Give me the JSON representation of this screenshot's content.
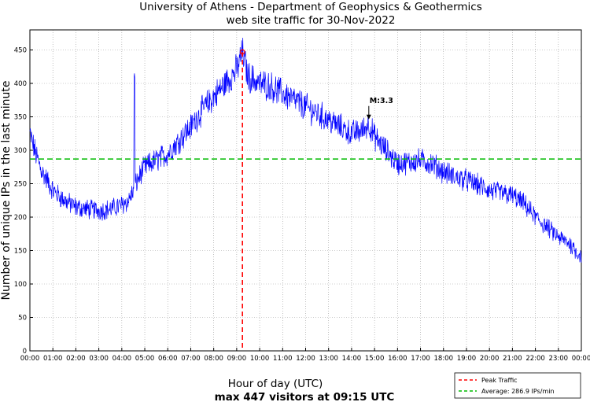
{
  "chart_data": {
    "type": "line",
    "title": "University of Athens - Department of Geophysics & Geothermics",
    "subtitle": "web site traffic for 30-Nov-2022",
    "xlabel": "Hour of day (UTC)",
    "ylabel": "Number of unique IPs in the last minute",
    "footer": "max 447 visitors at 09:15 UTC",
    "xlim": [
      0,
      24
    ],
    "ylim": [
      0,
      480
    ],
    "x_ticks": [
      "00:00",
      "01:00",
      "02:00",
      "03:00",
      "04:00",
      "05:00",
      "06:00",
      "07:00",
      "08:00",
      "09:00",
      "10:00",
      "11:00",
      "12:00",
      "13:00",
      "14:00",
      "15:00",
      "16:00",
      "17:00",
      "18:00",
      "19:00",
      "20:00",
      "21:00",
      "22:00",
      "23:00",
      "00:00"
    ],
    "y_ticks": [
      0,
      50,
      100,
      150,
      200,
      250,
      300,
      350,
      400,
      450
    ],
    "grid": true,
    "series": [
      {
        "name": "Traffic",
        "color": "#0000ff",
        "x_hours": [
          0,
          0.25,
          0.5,
          0.75,
          1,
          1.5,
          2,
          2.5,
          3,
          3.5,
          4,
          4.3,
          4.5,
          4.75,
          5,
          5.5,
          6,
          6.5,
          7,
          7.5,
          8,
          8.5,
          9,
          9.25,
          9.5,
          10,
          10.5,
          11,
          11.5,
          12,
          12.5,
          13,
          13.5,
          14,
          14.5,
          14.75,
          15,
          15.5,
          16,
          16.5,
          17,
          17.5,
          18,
          18.5,
          19,
          19.5,
          20,
          20.5,
          21,
          21.5,
          22,
          22.5,
          23,
          23.5,
          24
        ],
        "values": [
          325,
          295,
          270,
          255,
          240,
          225,
          215,
          212,
          210,
          212,
          218,
          225,
          240,
          260,
          275,
          285,
          295,
          315,
          335,
          360,
          380,
          400,
          420,
          447,
          410,
          400,
          395,
          385,
          375,
          365,
          355,
          345,
          335,
          325,
          330,
          340,
          320,
          300,
          280,
          282,
          285,
          280,
          268,
          260,
          255,
          248,
          240,
          236,
          232,
          220,
          200,
          185,
          170,
          160,
          140
        ],
        "spike": {
          "x_hour": 4.55,
          "value": 415
        }
      }
    ],
    "peak": {
      "x_hour": 9.25,
      "value": 447,
      "color": "#ff0000",
      "label": "Peak Traffic"
    },
    "average": {
      "value": 286.9,
      "color": "#00bb00",
      "label": "Average: 286.9 IPs/min"
    },
    "annotation": {
      "x_hour": 14.75,
      "value": 345,
      "text": "M:3.3"
    },
    "legend_position": "bottom-right"
  }
}
